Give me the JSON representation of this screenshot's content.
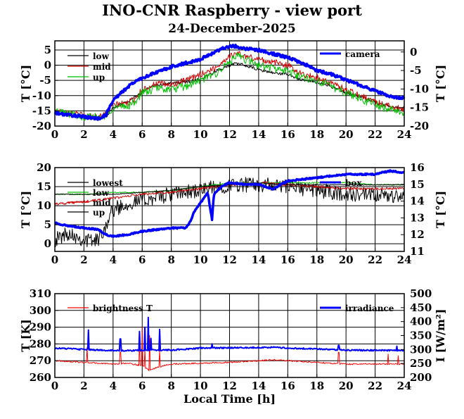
{
  "page": {
    "title": "INO-CNR Raspberry - view port",
    "date": "24-December-2025"
  },
  "chart_data": [
    {
      "type": "line",
      "x_range": [
        0,
        24
      ],
      "x_ticks": [
        0,
        2,
        4,
        6,
        8,
        10,
        12,
        14,
        16,
        18,
        20,
        22,
        24
      ],
      "xlabel": "",
      "ylabel_left": "T [°C]",
      "ylabel_right": "T [°C]",
      "ylim_left": [
        -20,
        8
      ],
      "yticks_left": [
        5,
        0,
        -5,
        -10,
        -15,
        -20
      ],
      "ylim_right": [
        -20,
        3
      ],
      "yticks_right": [
        0,
        -5,
        -10,
        -15,
        -20
      ],
      "grid": true,
      "legend_left": "top-left",
      "legend_right": "top-right",
      "colors": {
        "low": "#000000",
        "mid": "#d00000",
        "up": "#00c000",
        "camera": "#0000ff"
      },
      "series": [
        {
          "name": "low",
          "axis": "left",
          "noise": 0.5,
          "x": [
            0,
            1,
            2,
            3,
            3.5,
            4,
            5,
            5.5,
            6,
            6.5,
            7,
            8,
            9,
            10,
            11,
            11.5,
            12,
            12.5,
            13,
            14,
            15,
            16,
            17,
            18,
            19,
            20,
            21,
            22,
            23,
            24
          ],
          "values": [
            -15.5,
            -16.5,
            -17,
            -17.5,
            -17,
            -14,
            -12,
            -10.5,
            -9,
            -7,
            -6.5,
            -6,
            -5.5,
            -4.5,
            -2,
            -1,
            0,
            0.5,
            0,
            -1.5,
            -2.5,
            -3,
            -5,
            -5.5,
            -7,
            -9,
            -10.5,
            -12,
            -13.5,
            -14.5
          ]
        },
        {
          "name": "mid",
          "axis": "left",
          "noise": 1.0,
          "x": [
            0,
            1,
            2,
            3,
            3.5,
            4,
            5,
            5.5,
            6,
            6.5,
            7,
            8,
            9,
            10,
            11,
            11.5,
            12,
            12.5,
            13,
            14,
            15,
            16,
            17,
            18,
            19,
            20,
            21,
            22,
            23,
            24
          ],
          "values": [
            -15,
            -15.5,
            -16.5,
            -17,
            -16,
            -13,
            -12.5,
            -11,
            -8,
            -7,
            -6,
            -6.5,
            -5,
            -3,
            -1,
            1,
            3,
            4,
            3,
            2,
            1,
            0,
            -3,
            -4,
            -6,
            -8,
            -10,
            -12,
            -13.5,
            -14.5
          ]
        },
        {
          "name": "up",
          "axis": "left",
          "noise": 1.3,
          "x": [
            0,
            1,
            2,
            3,
            3.5,
            4,
            5,
            5.5,
            6,
            6.5,
            7,
            8,
            9,
            10,
            11,
            11.5,
            12,
            12.5,
            13,
            14,
            15,
            16,
            17,
            18,
            19,
            20,
            21,
            22,
            23,
            24
          ],
          "values": [
            -15,
            -16,
            -17,
            -17,
            -16.5,
            -14,
            -13.5,
            -12,
            -9,
            -8.5,
            -7.5,
            -8,
            -7,
            -5,
            -3,
            -1,
            1,
            3,
            2,
            0,
            -1,
            -2,
            -4,
            -5,
            -7,
            -9,
            -11,
            -13,
            -14.5,
            -15.5
          ]
        },
        {
          "name": "camera",
          "axis": "right",
          "noise": 0.4,
          "x": [
            0,
            1,
            2,
            3,
            3.5,
            4,
            5,
            5.5,
            6,
            7,
            8,
            9,
            10,
            11,
            11.5,
            12,
            12.5,
            13,
            14,
            15,
            16,
            17,
            18,
            19,
            20,
            21,
            22,
            23,
            24
          ],
          "values": [
            -16.5,
            -17,
            -17.5,
            -18,
            -17,
            -13,
            -9.5,
            -8,
            -7,
            -5.5,
            -4,
            -3,
            -2,
            0,
            1,
            1.5,
            1.5,
            1,
            0.5,
            -0.5,
            -1.5,
            -3,
            -5,
            -6,
            -7.5,
            -9,
            -10.5,
            -12,
            -12.5
          ]
        }
      ]
    },
    {
      "type": "line",
      "x_range": [
        0,
        24
      ],
      "x_ticks": [
        0,
        2,
        4,
        6,
        8,
        10,
        12,
        14,
        16,
        18,
        20,
        22,
        24
      ],
      "xlabel": "",
      "ylabel_left": "T [°C]",
      "ylabel_right": "T [°C]",
      "ylim_left": [
        -2,
        20
      ],
      "yticks_left": [
        20,
        15,
        10,
        5,
        0
      ],
      "ylim_right": [
        11,
        16
      ],
      "yticks_right": [
        16,
        15,
        14,
        13,
        12,
        11
      ],
      "grid": true,
      "legend_left": "top-left",
      "legend_right": "top-right",
      "colors": {
        "lowest": "#000000",
        "low": "#00c000",
        "mid": "#d00000",
        "up": "#000000",
        "box": "#0000ff"
      },
      "series": [
        {
          "name": "lowest",
          "axis": "left",
          "noise": 2.0,
          "x": [
            0,
            1,
            2,
            3,
            3.5,
            4,
            5,
            6,
            8,
            10,
            12,
            14,
            16,
            17,
            18,
            20,
            22,
            24
          ],
          "values": [
            1,
            3,
            1,
            1,
            5,
            9,
            10.5,
            11.5,
            13,
            14,
            15.5,
            15.5,
            15,
            14.5,
            14,
            13,
            12.5,
            12.5
          ]
        },
        {
          "name": "low",
          "axis": "left",
          "noise": 0.15,
          "x": [
            0,
            2,
            4,
            6,
            8,
            10,
            12,
            14,
            16,
            18,
            20,
            22,
            24
          ],
          "values": [
            13,
            13,
            13.5,
            13.5,
            14,
            15,
            16,
            16,
            16,
            16,
            16,
            15.5,
            15.5
          ]
        },
        {
          "name": "mid",
          "axis": "left",
          "noise": 0.35,
          "x": [
            0,
            2,
            4,
            6,
            8,
            10,
            12,
            14,
            16,
            18,
            20,
            22,
            24
          ],
          "values": [
            10.5,
            11,
            12,
            13,
            13.5,
            14.5,
            15.5,
            16,
            15.5,
            15,
            14.5,
            14.5,
            14.5
          ]
        },
        {
          "name": "up",
          "axis": "left",
          "noise": 0.1,
          "x": [
            0,
            2,
            4,
            6,
            8,
            10,
            12,
            14,
            16,
            18,
            20,
            22,
            24
          ],
          "values": [
            13,
            13,
            13,
            13.5,
            14,
            15,
            15.5,
            16,
            15.5,
            15.5,
            15.5,
            15.5,
            15.5
          ]
        },
        {
          "name": "box",
          "axis": "right",
          "noise": 0.04,
          "x": [
            0,
            1,
            2,
            3,
            3.5,
            4,
            5,
            6,
            7,
            8,
            9,
            9.2,
            9.6,
            10,
            10.5,
            10.8,
            10.9,
            11,
            11.5,
            12,
            13,
            14,
            15,
            15.5,
            16,
            18,
            20,
            22,
            23,
            24
          ],
          "values": [
            12.7,
            12.5,
            12.4,
            12.3,
            12.0,
            11.9,
            12.0,
            12.2,
            12.3,
            12.4,
            12.4,
            12.6,
            13.4,
            13.9,
            14.5,
            12.9,
            14.2,
            14.5,
            14.9,
            15.1,
            15.0,
            15.0,
            14.7,
            15.0,
            15.2,
            15.4,
            15.6,
            15.6,
            15.8,
            15.7
          ]
        }
      ]
    },
    {
      "type": "line",
      "x_range": [
        0,
        24
      ],
      "x_ticks": [
        0,
        2,
        4,
        6,
        8,
        10,
        12,
        14,
        16,
        18,
        20,
        22,
        24
      ],
      "xlabel": "Local Time [h]",
      "ylabel_left": "T [K]",
      "ylabel_right": "I [W/m²]",
      "ylim_left": [
        260,
        310
      ],
      "yticks_left": [
        310,
        300,
        290,
        280,
        270,
        260
      ],
      "ylim_right": [
        200,
        500
      ],
      "yticks_right": [
        500,
        450,
        400,
        350,
        300,
        250,
        200
      ],
      "grid": true,
      "legend_left": "top-left",
      "legend_right": "top-right",
      "colors": {
        "brightness T": "#ff0000",
        "irradiance": "#0000ff"
      },
      "series": [
        {
          "name": "brightness T",
          "axis": "left",
          "noise": 0.4,
          "x": [
            0,
            2,
            4,
            5,
            6,
            6.5,
            7,
            8,
            10,
            12,
            14,
            15,
            16,
            18,
            20,
            22,
            24
          ],
          "values": [
            270,
            269,
            268,
            268.5,
            267,
            264,
            266,
            268,
            268.5,
            269,
            270,
            270.5,
            270,
            269,
            268,
            268,
            268
          ],
          "spikes": [
            [
              2.2,
              278
            ],
            [
              4.5,
              275
            ],
            [
              5.8,
              282
            ],
            [
              6.0,
              290
            ],
            [
              6.2,
              277
            ],
            [
              6.5,
              285
            ],
            [
              7.2,
              276
            ],
            [
              19.5,
              275
            ],
            [
              22.9,
              274
            ],
            [
              23.6,
              273
            ]
          ]
        },
        {
          "name": "irradiance",
          "axis": "right",
          "noise": 2.5,
          "x": [
            0,
            1,
            2,
            3,
            4,
            5,
            6,
            7,
            8,
            10,
            12,
            14,
            15,
            16,
            18,
            20,
            22,
            24
          ],
          "values": [
            305,
            303,
            300,
            298,
            297,
            296,
            297,
            298,
            298,
            305,
            306,
            307,
            308,
            305,
            302,
            298,
            297,
            296
          ],
          "spikes": [
            [
              2.3,
              370
            ],
            [
              4.5,
              338
            ],
            [
              5.8,
              365
            ],
            [
              6.2,
              380
            ],
            [
              6.4,
              415
            ],
            [
              6.6,
              340
            ],
            [
              7.2,
              372
            ],
            [
              10.8,
              320
            ],
            [
              19.5,
              315
            ],
            [
              23.5,
              312
            ]
          ]
        }
      ]
    }
  ]
}
